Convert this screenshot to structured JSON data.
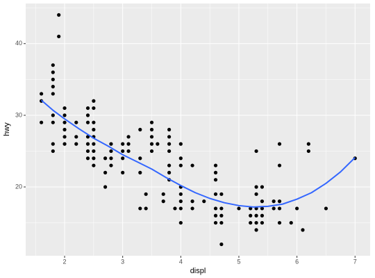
{
  "chart_data": {
    "type": "scatter",
    "x_label": "displ",
    "y_label": "hwy",
    "xlim": [
      1.33,
      7.26
    ],
    "ylim": [
      10.4,
      45.6
    ],
    "xticks": [
      2,
      3,
      4,
      5,
      6,
      7
    ],
    "yticks": [
      20,
      30,
      40
    ],
    "x_minor_grid": [
      1.5,
      2.5,
      3.5,
      4.5,
      5.5,
      6.5
    ],
    "y_minor_grid": [
      15,
      25,
      35,
      45
    ],
    "grid": true,
    "series": [
      {
        "type": "scatter",
        "color": "#000000",
        "x": [
          1.6,
          1.6,
          1.6,
          1.8,
          1.8,
          1.8,
          1.8,
          1.8,
          1.8,
          1.8,
          1.8,
          1.8,
          1.9,
          1.9,
          2.0,
          2.0,
          2.0,
          2.0,
          2.0,
          2.0,
          2.2,
          2.2,
          2.2,
          2.4,
          2.4,
          2.4,
          2.4,
          2.4,
          2.4,
          2.4,
          2.5,
          2.5,
          2.5,
          2.5,
          2.5,
          2.5,
          2.5,
          2.5,
          2.5,
          2.7,
          2.7,
          2.7,
          2.8,
          2.8,
          2.8,
          2.8,
          3.0,
          3.0,
          3.0,
          3.0,
          3.1,
          3.1,
          3.1,
          3.3,
          3.3,
          3.3,
          3.3,
          3.4,
          3.4,
          3.5,
          3.5,
          3.5,
          3.5,
          3.5,
          3.6,
          3.7,
          3.7,
          3.8,
          3.8,
          3.8,
          3.8,
          3.8,
          3.8,
          3.8,
          3.9,
          4.0,
          4.0,
          4.0,
          4.0,
          4.0,
          4.0,
          4.0,
          4.0,
          4.2,
          4.2,
          4.2,
          4.4,
          4.6,
          4.6,
          4.6,
          4.6,
          4.6,
          4.6,
          4.6,
          4.7,
          4.7,
          4.7,
          4.7,
          4.7,
          5.0,
          5.2,
          5.2,
          5.2,
          5.3,
          5.3,
          5.3,
          5.3,
          5.3,
          5.3,
          5.3,
          5.4,
          5.4,
          5.4,
          5.4,
          5.4,
          5.6,
          5.6,
          5.7,
          5.7,
          5.7,
          5.7,
          5.7,
          5.9,
          6.0,
          6.1,
          6.2,
          6.2,
          6.5,
          7.0
        ],
        "values": [
          33,
          32,
          29,
          37,
          36,
          35,
          34,
          33,
          30,
          29,
          26,
          25,
          44,
          41,
          31,
          30,
          29,
          28,
          27,
          26,
          29,
          27,
          26,
          31,
          30,
          29,
          27,
          26,
          25,
          24,
          32,
          31,
          29,
          28,
          27,
          26,
          25,
          24,
          23,
          24,
          22,
          20,
          26,
          25,
          24,
          23,
          26,
          25,
          24,
          22,
          27,
          26,
          25,
          28,
          24,
          22,
          17,
          19,
          17,
          29,
          28,
          27,
          26,
          25,
          26,
          19,
          18,
          28,
          27,
          26,
          25,
          23,
          22,
          21,
          17,
          26,
          24,
          23,
          20,
          19,
          18,
          17,
          15,
          23,
          18,
          17,
          18,
          23,
          22,
          21,
          19,
          17,
          16,
          15,
          19,
          17,
          16,
          15,
          12,
          17,
          17,
          16,
          15,
          25,
          20,
          19,
          17,
          16,
          15,
          14,
          20,
          18,
          17,
          16,
          15,
          18,
          17,
          26,
          23,
          18,
          17,
          15,
          15,
          17,
          14,
          26,
          25,
          17,
          24
        ]
      },
      {
        "type": "line",
        "color": "#3366FF",
        "x": [
          1.6,
          1.8,
          2.0,
          2.25,
          2.5,
          2.75,
          3.0,
          3.25,
          3.5,
          3.75,
          4.0,
          4.25,
          4.5,
          4.75,
          5.0,
          5.25,
          5.5,
          5.75,
          6.0,
          6.25,
          6.5,
          6.75,
          7.0
        ],
        "values": [
          32.1,
          30.7,
          29.5,
          28.1,
          26.8,
          25.7,
          24.5,
          23.5,
          22.5,
          21.3,
          20.2,
          19.2,
          18.4,
          17.8,
          17.4,
          17.2,
          17.3,
          17.6,
          18.3,
          19.2,
          20.5,
          22.1,
          24.1
        ]
      }
    ]
  }
}
